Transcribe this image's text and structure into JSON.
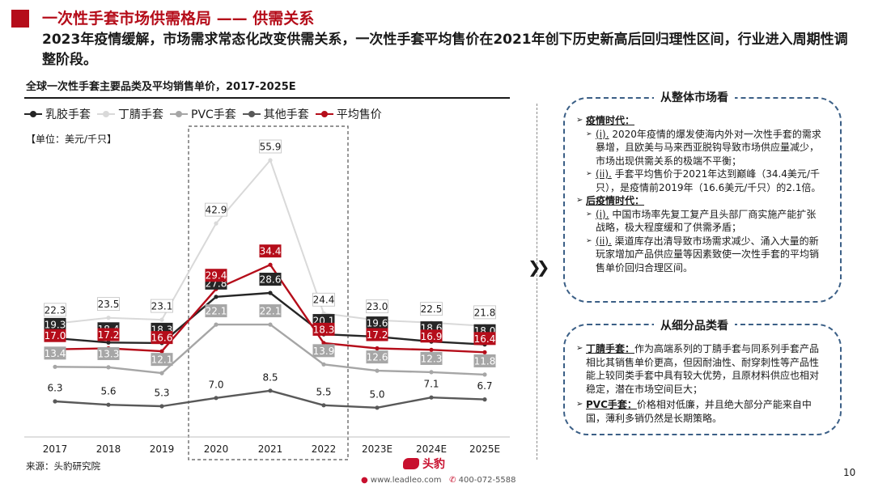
{
  "header": {
    "title": "一次性手套市场供需格局 —— 供需关系",
    "subtitle": "2023年疫情缓解，市场需求常态化改变供需关系，一次性手套平均售价在2021年创下历史新高后回归理性区间，行业进入周期性调整阶段。"
  },
  "chart_title": "全球一次性手套主要品类及平均销售单价，2017-2025E",
  "unit_label": "【单位：美元/千只】",
  "colors": {
    "latex": "#262626",
    "nitrile": "#d9d9d9",
    "pvc": "#a6a6a6",
    "other": "#595959",
    "avg": "#b50d1a",
    "brand": "#b50d1a",
    "panel_border": "#3b5f86"
  },
  "chart_data": {
    "type": "line",
    "categories": [
      "2017",
      "2018",
      "2019",
      "2020",
      "2021",
      "2022",
      "2023E",
      "2024E",
      "2025E"
    ],
    "series": [
      {
        "key": "latex",
        "name": "乳胶手套",
        "values": [
          19.3,
          18.4,
          18.3,
          27.8,
          28.6,
          20.1,
          19.6,
          18.6,
          18.0
        ]
      },
      {
        "key": "nitrile",
        "name": "丁腈手套",
        "values": [
          22.3,
          23.5,
          23.1,
          42.9,
          55.9,
          24.4,
          23.0,
          22.5,
          21.8
        ]
      },
      {
        "key": "pvc",
        "name": "PVC手套",
        "values": [
          13.4,
          13.3,
          12.1,
          22.1,
          22.1,
          13.9,
          12.6,
          12.3,
          11.8
        ]
      },
      {
        "key": "other",
        "name": "其他手套",
        "values": [
          6.3,
          5.6,
          5.3,
          7.0,
          8.5,
          5.5,
          5.0,
          7.1,
          6.7
        ]
      },
      {
        "key": "avg",
        "name": "平均售价",
        "values": [
          17.0,
          17.2,
          16.6,
          29.4,
          34.4,
          18.3,
          17.2,
          16.9,
          16.4
        ]
      }
    ],
    "highlight": [
      "2020",
      "2022"
    ],
    "legend_position": "top-left"
  },
  "panels": {
    "overall": {
      "title": "从整体市场看",
      "pandemic_heading": "疫情时代：",
      "pandemic_items": [
        {
          "tag": "(i).",
          "text": " 2020年疫情的爆发使海内外对一次性手套的需求暴增，且欧美与马来西亚脱钩导致市场供应量减少，市场出现供需关系的极端不平衡；"
        },
        {
          "tag": "(ii).",
          "text": " 手套平均售价于2021年达到巅峰（34.4美元/千只），是疫情前2019年（16.6美元/千只）的2.1倍。"
        }
      ],
      "post_heading": "后疫情时代：",
      "post_items": [
        {
          "tag": "(i).",
          "text": " 中国市场率先复工复产且头部厂商实施产能扩张战略，极大程度缓和了供需矛盾；"
        },
        {
          "tag": "(ii).",
          "text": " 渠道库存出清导致市场需求减少、涌入大量的新玩家增加产品供应量等因素致使一次性手套的平均销售单价回归合理区间。"
        }
      ]
    },
    "segment": {
      "title": "从细分品类看",
      "items": [
        {
          "head": "丁腈手套：",
          "text": "作为高端系列的丁腈手套与同系列手套产品相比其销售单价更高，但因耐油性、耐穿刺性等产品性能上较同类手套中具有较大优势，且原材料供应也相对稳定，潜在市场空间巨大；"
        },
        {
          "head": "PVC手套：",
          "text": "价格相对低廉，并且绝大部分产能来自中国，薄利多销仍然是长期策略。"
        }
      ]
    }
  },
  "source": "来源：头豹研究院",
  "footer": {
    "brand": "头豹",
    "website": "www.leadleo.com",
    "phone": "400-072-5588"
  },
  "page_number": "10"
}
